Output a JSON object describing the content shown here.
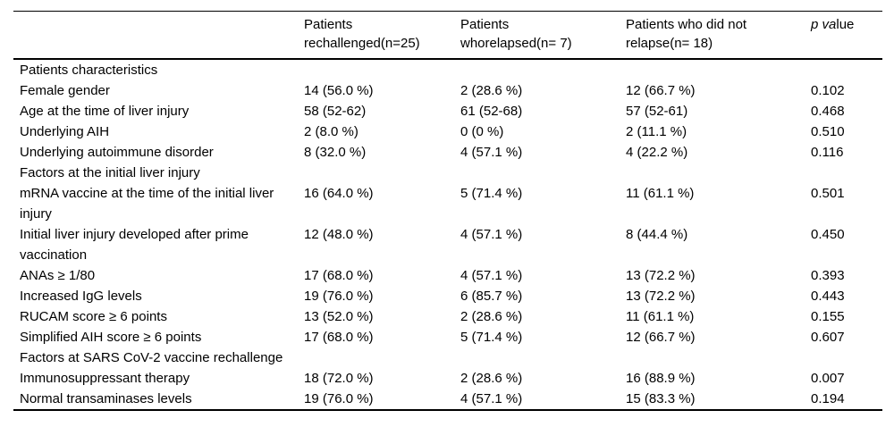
{
  "table": {
    "headers": {
      "stub": "",
      "col_rechallenged": "Patients rechallenged(n=25)",
      "col_relapsed": "Patients whorelapsed(n= 7)",
      "col_no_relapse": "Patients who did not relapse(n= 18)",
      "p_value": {
        "italic_part": "p va",
        "regular_part": "lue"
      }
    },
    "rows": [
      {
        "type": "section",
        "label": "Patients characteristics"
      },
      {
        "type": "data",
        "label": "Female gender",
        "values": [
          "14 (56.0 %)",
          "2 (28.6 %)",
          "12 (66.7 %)",
          "0.102"
        ]
      },
      {
        "type": "data",
        "label": "Age at the time of liver injury",
        "values": [
          "58 (52-62)",
          "61 (52-68)",
          "57 (52-61)",
          "0.468"
        ]
      },
      {
        "type": "data",
        "label": "Underlying AIH",
        "values": [
          "2 (8.0 %)",
          "0 (0 %)",
          "2 (11.1 %)",
          "0.510"
        ]
      },
      {
        "type": "data",
        "label": "Underlying autoimmune disorder",
        "values": [
          "8 (32.0 %)",
          "4 (57.1 %)",
          "4 (22.2 %)",
          "0.116"
        ]
      },
      {
        "type": "section",
        "label": "Factors at the initial liver injury"
      },
      {
        "type": "data",
        "label": "mRNA vaccine at the time of the initial liver injury",
        "values": [
          "16 (64.0 %)",
          "5 (71.4 %)",
          "11 (61.1 %)",
          "0.501"
        ]
      },
      {
        "type": "data",
        "label": "Initial liver injury developed after prime vaccination",
        "values": [
          "12 (48.0 %)",
          "4 (57.1 %)",
          "8 (44.4 %)",
          "0.450"
        ]
      },
      {
        "type": "data",
        "label": "ANAs ≥ 1/80",
        "values": [
          "17 (68.0 %)",
          "4 (57.1 %)",
          "13 (72.2 %)",
          "0.393"
        ]
      },
      {
        "type": "data",
        "label": "Increased IgG levels",
        "values": [
          "19 (76.0 %)",
          "6 (85.7 %)",
          "13 (72.2 %)",
          "0.443"
        ]
      },
      {
        "type": "data",
        "label": "RUCAM score ≥ 6 points",
        "values": [
          "13 (52.0 %)",
          "2 (28.6 %)",
          "11 (61.1 %)",
          "0.155"
        ]
      },
      {
        "type": "data",
        "label": "Simplified AIH score ≥ 6 points",
        "values": [
          "17 (68.0 %)",
          "5 (71.4 %)",
          "12 (66.7 %)",
          "0.607"
        ]
      },
      {
        "type": "section",
        "label": "Factors at SARS CoV-2 vaccine rechallenge"
      },
      {
        "type": "data",
        "label": "Immunosuppressant therapy",
        "values": [
          "18 (72.0 %)",
          "2 (28.6 %)",
          "16 (88.9 %)",
          "0.007"
        ]
      },
      {
        "type": "data",
        "label": "Normal transaminases levels",
        "values": [
          "19 (76.0 %)",
          "4 (57.1 %)",
          "15 (83.3 %)",
          "0.194"
        ]
      }
    ]
  },
  "colors": {
    "text": "#000000",
    "rule": "#000000",
    "background": "#ffffff"
  }
}
